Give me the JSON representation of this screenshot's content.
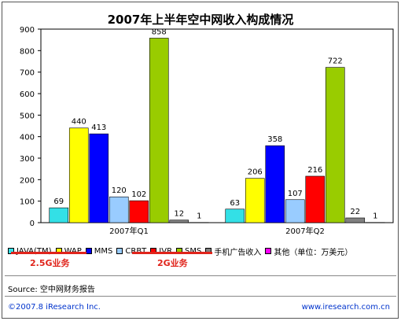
{
  "chart_data": {
    "type": "bar",
    "title": "2007年上半年空中网收入构成情况",
    "categories": [
      "2007年Q1",
      "2007年Q2"
    ],
    "ylim": [
      0,
      900
    ],
    "yticks": [
      0,
      100,
      200,
      300,
      400,
      500,
      600,
      700,
      800,
      900
    ],
    "grid": false,
    "series": [
      {
        "name": "JAVA(TM)",
        "color": "#33e0e6",
        "values": [
          69,
          63
        ]
      },
      {
        "name": "WAP",
        "color": "#ffff00",
        "values": [
          440,
          206
        ]
      },
      {
        "name": "MMS",
        "color": "#0000ff",
        "values": [
          413,
          358
        ]
      },
      {
        "name": "CRBT",
        "color": "#99ccff",
        "values": [
          120,
          107
        ]
      },
      {
        "name": "IVR",
        "color": "#ff0000",
        "values": [
          102,
          216
        ]
      },
      {
        "name": "SMS",
        "color": "#99cc00",
        "values": [
          858,
          722
        ]
      },
      {
        "name": "手机广告收入",
        "color": "#808080",
        "values": [
          12,
          22
        ]
      },
      {
        "name": "其他（单位：万美元）",
        "color": "#ff00ff",
        "values": [
          1,
          1
        ]
      }
    ]
  },
  "groups": {
    "g25": "2.5G业务",
    "g2": "2G业务"
  },
  "source": "Source:  空中网财务报告",
  "footer": {
    "left": "©2007.8 iResearch Inc.",
    "right": "www.iresearch.com.cn"
  }
}
